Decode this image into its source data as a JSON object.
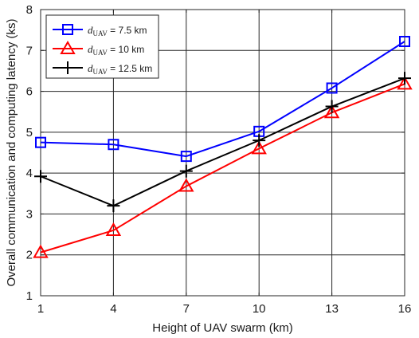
{
  "chart_data": {
    "type": "line",
    "xlabel": "Height of UAV swarm (km)",
    "ylabel": "Overall communication and computing latency (ks)",
    "x": [
      1,
      4,
      7,
      10,
      13,
      16
    ],
    "xticks": [
      "1",
      "4",
      "7",
      "10",
      "13",
      "16"
    ],
    "yticks": [
      "1",
      "2",
      "3",
      "4",
      "5",
      "6",
      "7",
      "8"
    ],
    "xlim": [
      1,
      16
    ],
    "ylim": [
      1,
      8
    ],
    "grid": true,
    "legend_position": "top-left",
    "series": [
      {
        "name": "d_UAV = 7.5 km",
        "legend": {
          "var": "d",
          "sub": "UAV",
          "rest": " = 7.5 km"
        },
        "color": "#0000ff",
        "marker": "square",
        "values": [
          4.75,
          4.7,
          4.41,
          5.02,
          6.08,
          7.22
        ]
      },
      {
        "name": "d_UAV = 10 km",
        "legend": {
          "var": "d",
          "sub": "UAV",
          "rest": " = 10 km"
        },
        "color": "#ff0000",
        "marker": "triangle",
        "values": [
          2.06,
          2.6,
          3.68,
          4.6,
          5.48,
          6.18
        ]
      },
      {
        "name": "d_UAV = 12.5 km",
        "legend": {
          "var": "d",
          "sub": "UAV",
          "rest": " = 12.5 km"
        },
        "color": "#000000",
        "marker": "plus",
        "values": [
          3.92,
          3.2,
          4.05,
          4.8,
          5.63,
          6.32
        ]
      }
    ]
  }
}
